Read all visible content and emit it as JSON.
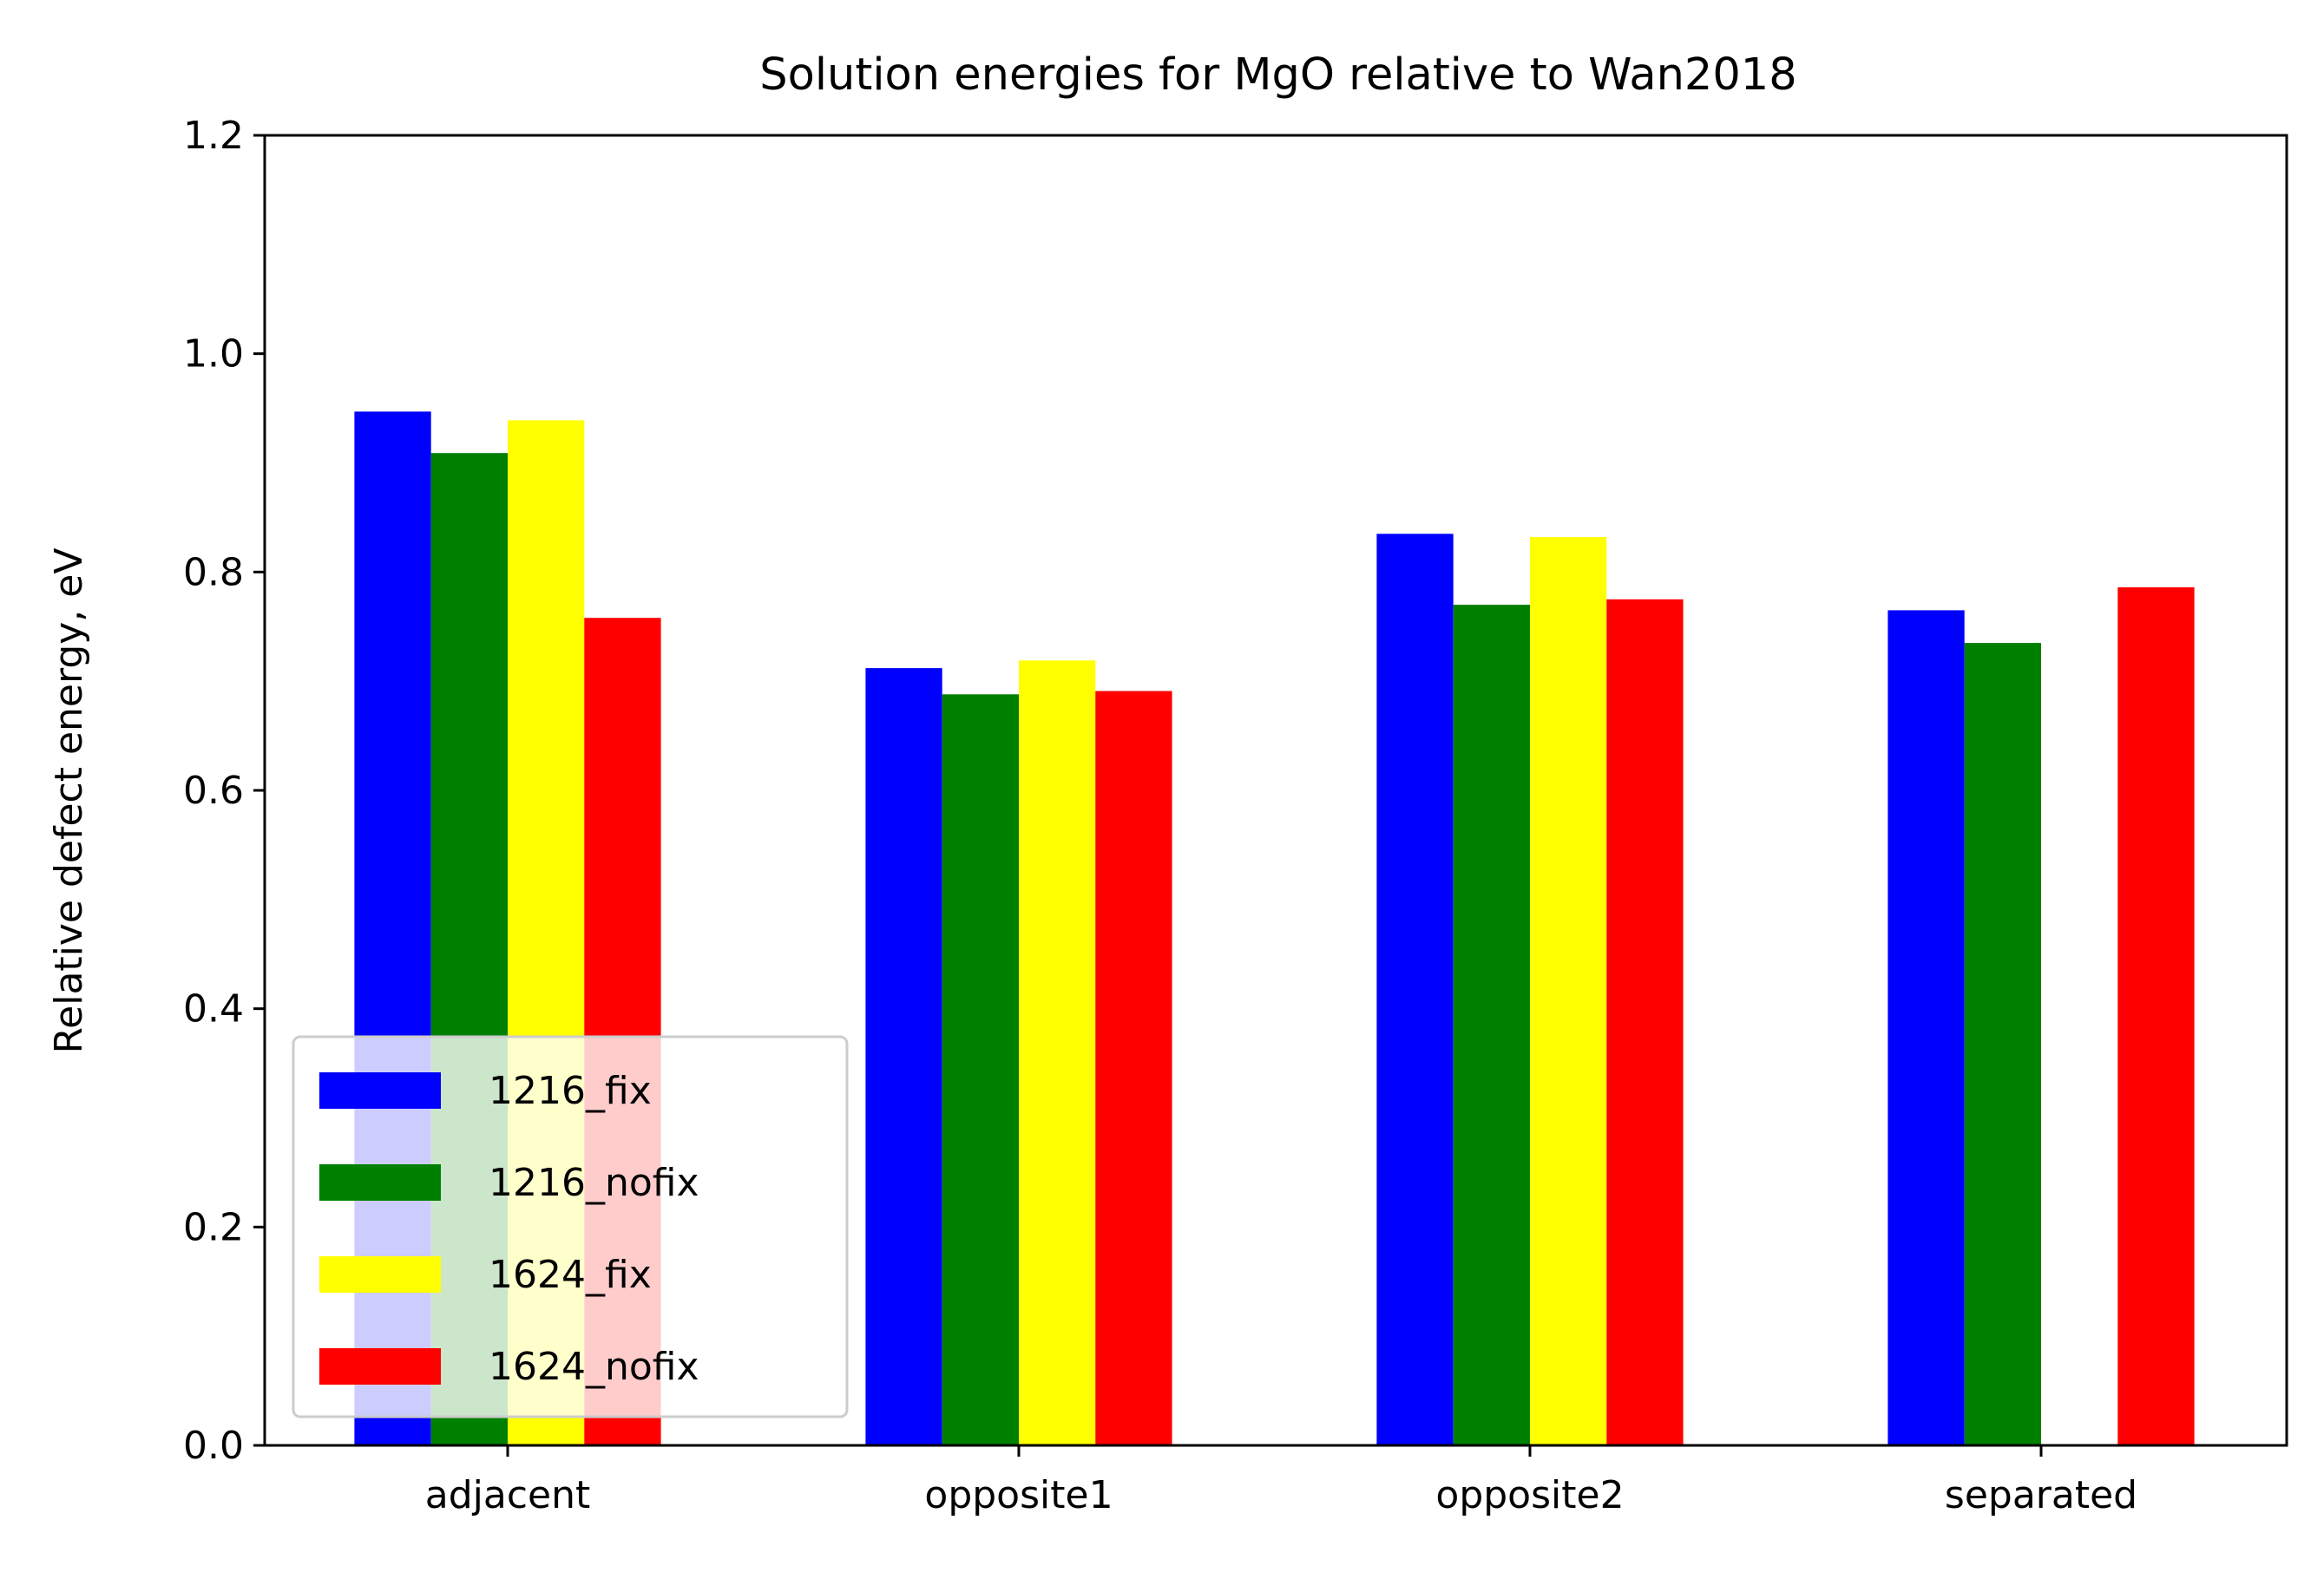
{
  "chart_data": {
    "type": "bar",
    "title": "Solution energies for MgO relative to Wan2018",
    "xlabel": "",
    "ylabel": "Relative defect energy, eV",
    "ylim": [
      0,
      1.2
    ],
    "yticks": [
      "0.0",
      "0.2",
      "0.4",
      "0.6",
      "0.8",
      "1.0",
      "1.2"
    ],
    "categories": [
      "adjacent",
      "opposite1",
      "opposite2",
      "separated"
    ],
    "series": [
      {
        "name": "1216_fix",
        "color": "#0000ff",
        "values": [
          0.947,
          0.712,
          0.835,
          0.765
        ]
      },
      {
        "name": "1216_nofix",
        "color": "#008000",
        "values": [
          0.909,
          0.688,
          0.77,
          0.735
        ]
      },
      {
        "name": "1624_fix",
        "color": "#ffff00",
        "values": [
          0.939,
          0.719,
          0.832,
          null
        ]
      },
      {
        "name": "1624_nofix",
        "color": "#ff0000",
        "values": [
          0.758,
          0.691,
          0.775,
          0.786
        ]
      }
    ],
    "grid": false,
    "legend_position": "lower-left"
  }
}
